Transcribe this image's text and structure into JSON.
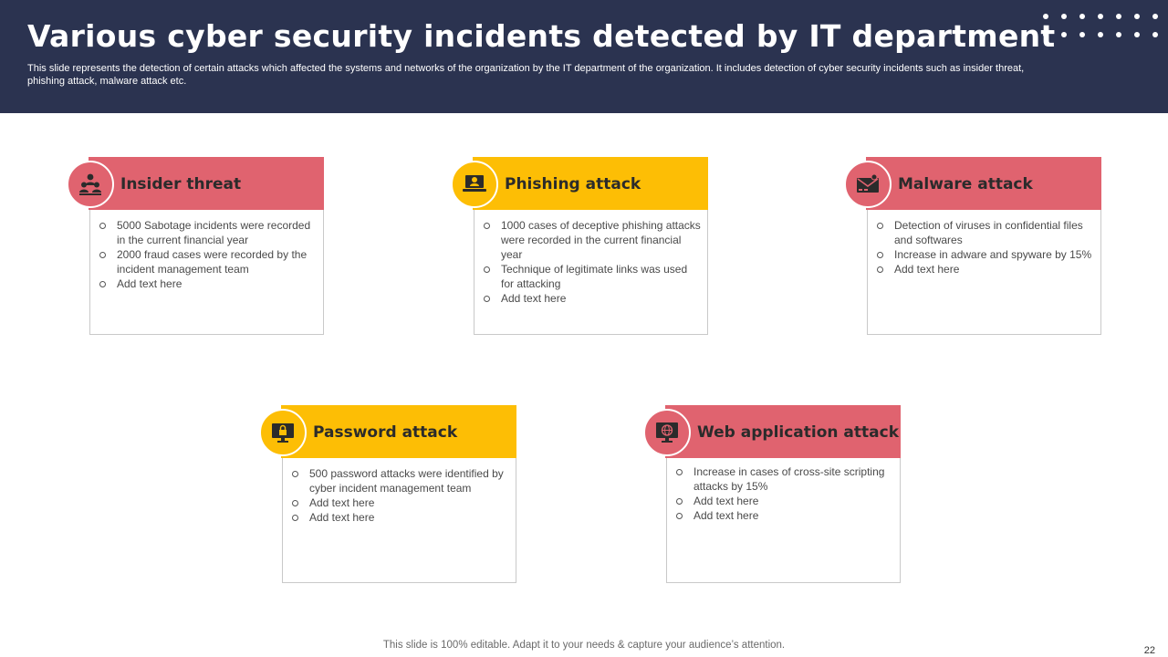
{
  "slide": {
    "title": "Various cyber security incidents detected by IT department",
    "subtitle": "This slide represents the detection of certain attacks which affected the systems and networks of the organization by the IT department of the organization. It includes detection of cyber security incidents such as insider threat, phishing attack, malware attack etc.",
    "footer": "This slide is 100% editable. Adapt it to your needs & capture your audience’s attention.",
    "page_number": "22"
  },
  "colors": {
    "header_bg": "#2b3350",
    "red_accent": "#e0636f",
    "yellow_accent": "#fdbe05"
  },
  "cards": [
    {
      "title": "Insider threat",
      "icon": "people-group-icon",
      "accent": "red",
      "bullets": [
        "5000 Sabotage incidents were recorded in the current financial year",
        "2000 fraud cases were recorded by the incident management team",
        "Add text here"
      ]
    },
    {
      "title": "Phishing attack",
      "icon": "hacker-laptop-icon",
      "accent": "yellow",
      "bullets": [
        "1000 cases of deceptive phishing attacks were recorded in the current financial year",
        "Technique of legitimate links was used for attacking",
        "Add text here"
      ]
    },
    {
      "title": "Malware attack",
      "icon": "infected-email-icon",
      "accent": "red",
      "bullets": [
        "Detection of viruses in confidential files and softwares",
        "Increase in adware and spyware by 15%",
        "Add text here"
      ]
    },
    {
      "title": "Password attack",
      "icon": "password-monitor-icon",
      "accent": "yellow",
      "bullets": [
        "500 password attacks were identified by cyber incident management team",
        "Add text here",
        "Add text here"
      ]
    },
    {
      "title": "Web application attack",
      "icon": "web-globe-monitor-icon",
      "accent": "red",
      "bullets": [
        "Increase in cases of cross-site scripting attacks by 15%",
        "Add text here",
        "Add text here"
      ]
    }
  ]
}
